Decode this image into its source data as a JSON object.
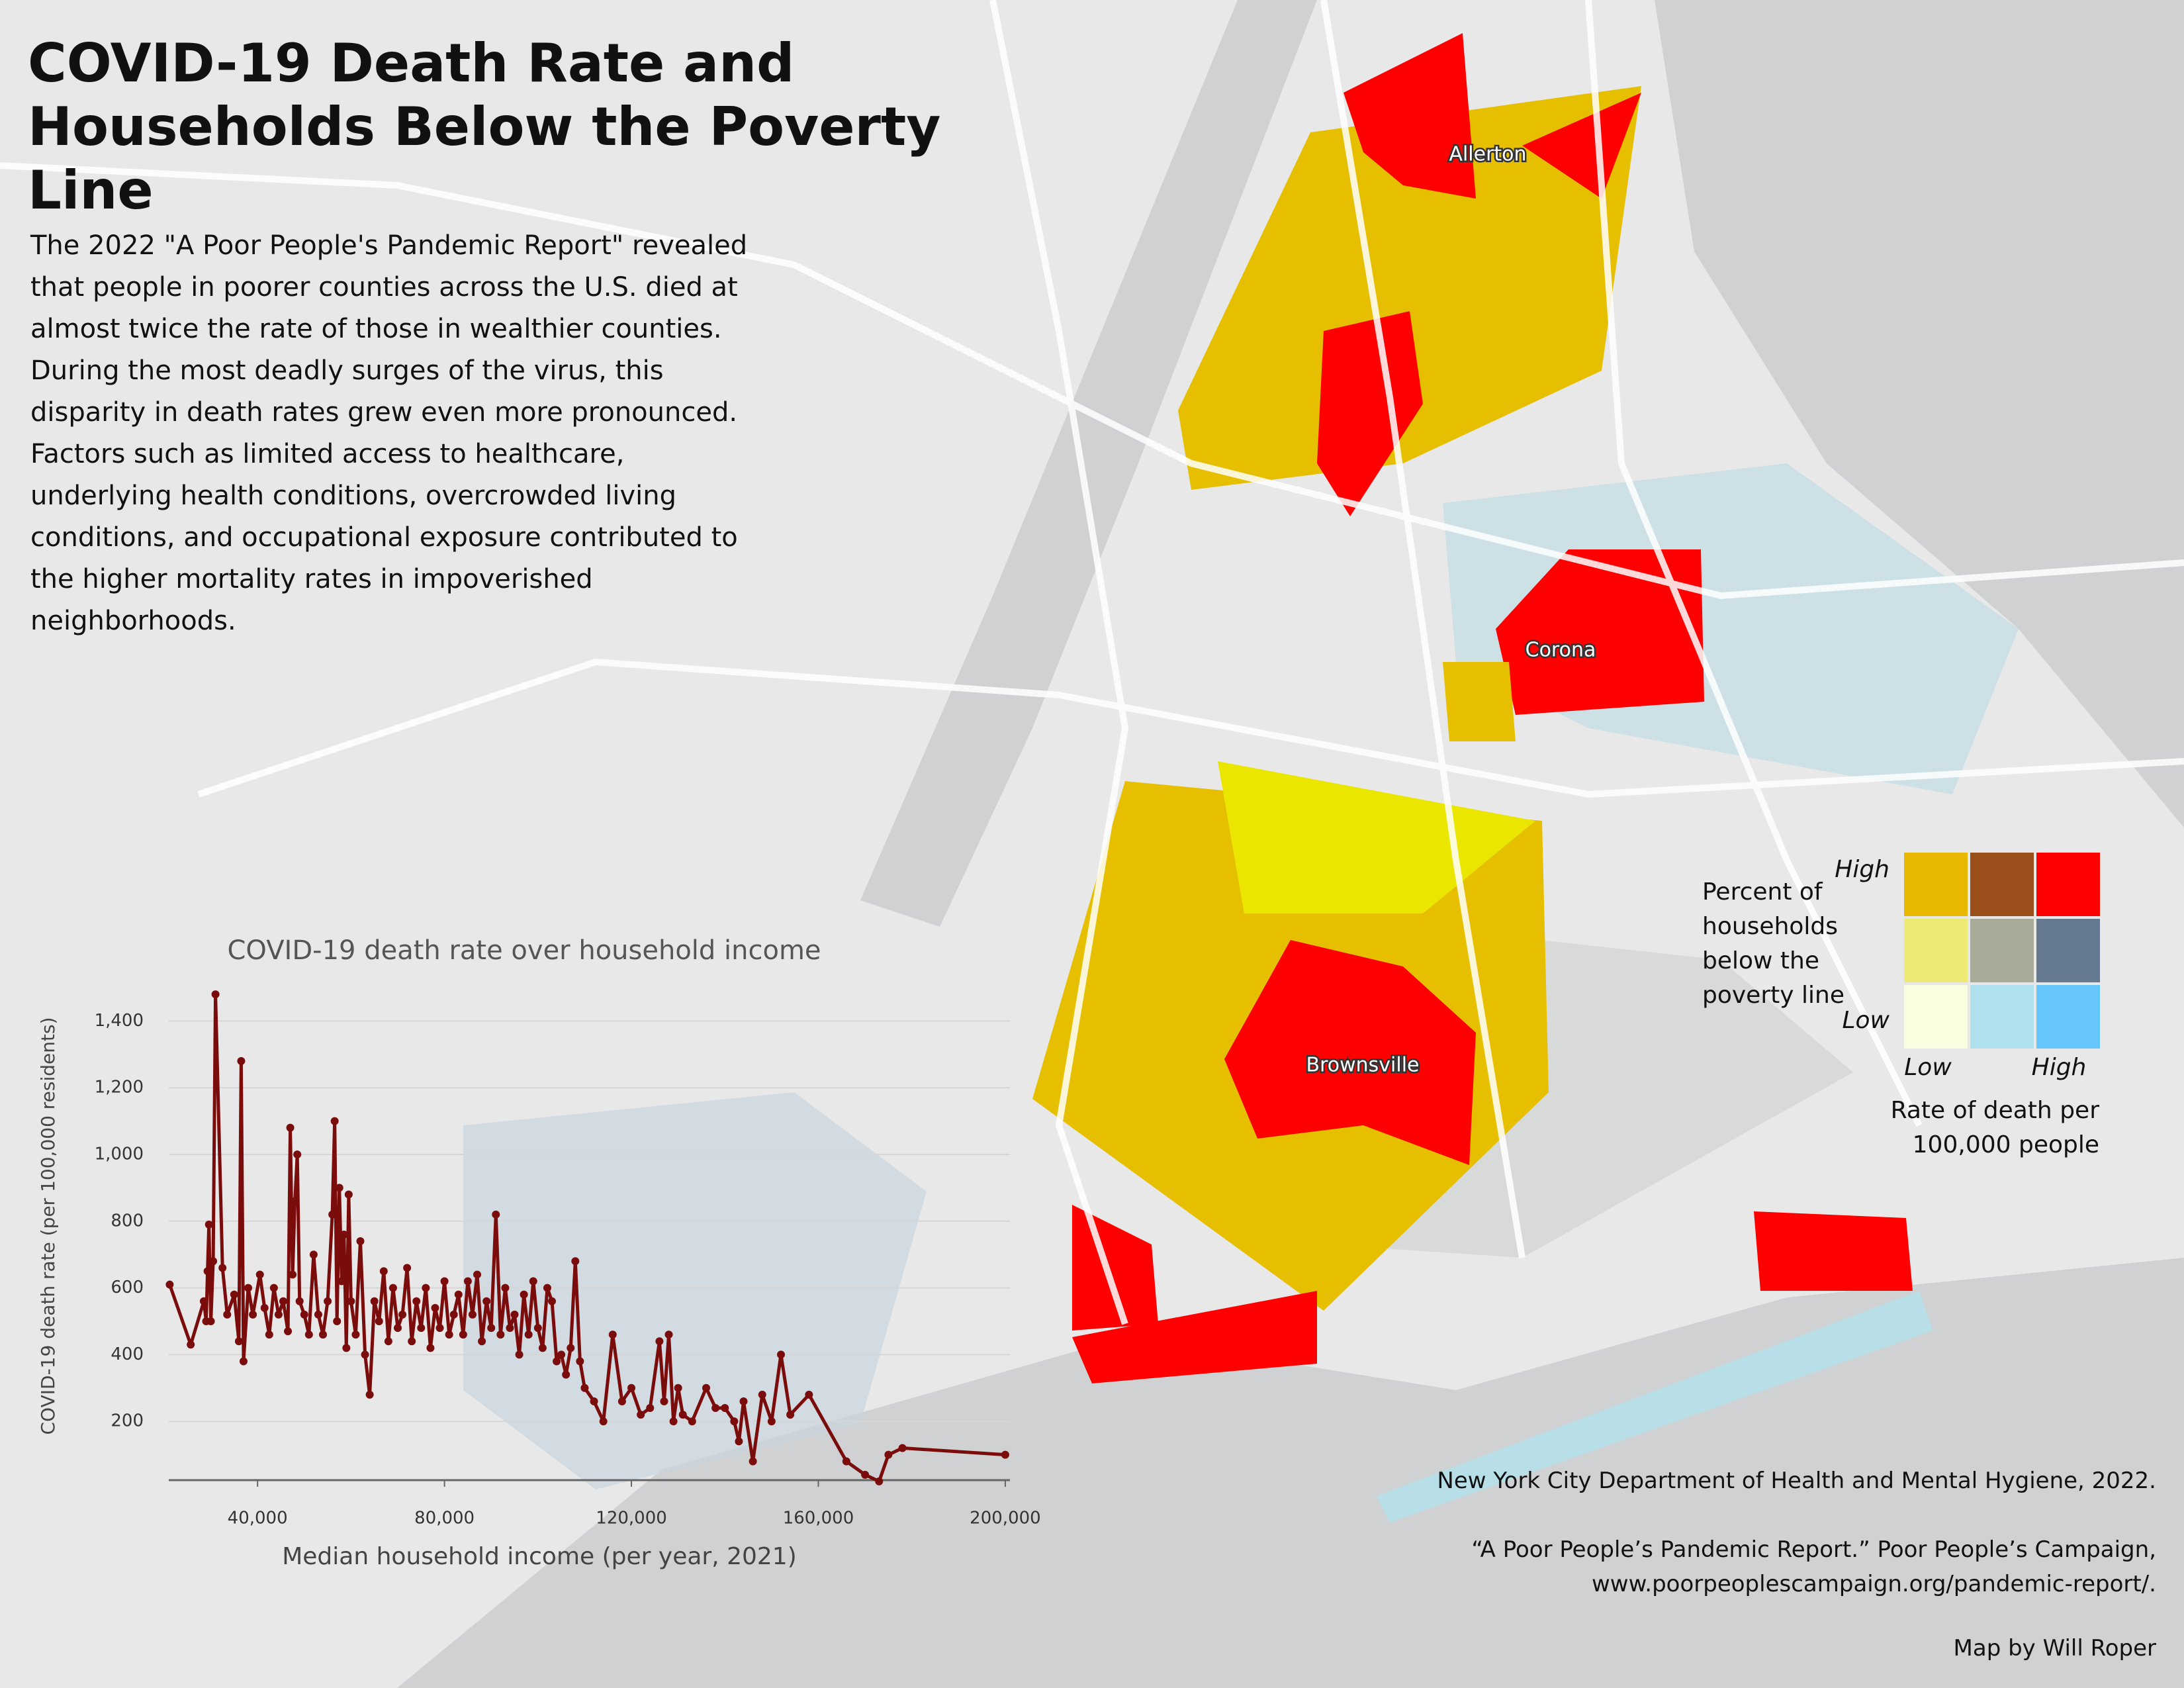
{
  "title": "COVID-19 Death Rate and Households Below the Poverty Line",
  "description": "The 2022 \"A Poor People's Pandemic Report\" revealed that people in poorer counties across the U.S. died at almost twice the rate of those in wealthier counties. During the most deadly surges of the virus, this disparity in death rates grew even more pronounced. Factors such as limited access to healthcare, underlying health conditions, overcrowded living conditions, and occupational exposure contributed to the higher mortality rates in impoverished neighborhoods.",
  "map_labels": [
    "Allerton",
    "Corona",
    "Brownsville"
  ],
  "legend": {
    "y_title": "Percent of households below the poverty line",
    "y_high": "High",
    "y_low": "Low",
    "x_low": "Low",
    "x_high": "High",
    "x_title": "Rate of death per 100,000 people",
    "colors": [
      [
        "#e8b800",
        "#9b4f1a",
        "#ff0000"
      ],
      [
        "#eeea76",
        "#a9ab99",
        "#657a90"
      ],
      [
        "#fbfde0",
        "#aee0ee",
        "#66c6fb"
      ]
    ]
  },
  "chart_data": {
    "type": "line",
    "title": "COVID-19 death rate over household income",
    "x_label": "Median household income (per year, 2021)",
    "y_label": "COVID-19 death rate (per 100,000 residents)",
    "color": "#7a0c0c",
    "x": [
      21200,
      25700,
      28500,
      29000,
      29300,
      29600,
      30000,
      30500,
      31000,
      32500,
      33500,
      35000,
      36000,
      36500,
      37000,
      38000,
      39000,
      40500,
      41500,
      42500,
      43500,
      44500,
      45500,
      46500,
      47000,
      47500,
      48000,
      48500,
      49000,
      50000,
      51000,
      52000,
      53000,
      54000,
      55000,
      56000,
      56500,
      57000,
      57500,
      58000,
      58500,
      59000,
      59500,
      60000,
      61000,
      62000,
      63000,
      64000,
      65000,
      66000,
      67000,
      68000,
      69000,
      70000,
      71000,
      72000,
      73000,
      74000,
      75000,
      76000,
      77000,
      78000,
      79000,
      80000,
      81000,
      82000,
      83000,
      84000,
      85000,
      86000,
      87000,
      88000,
      89000,
      90000,
      91000,
      92000,
      93000,
      94000,
      95000,
      96000,
      97000,
      98000,
      99000,
      100000,
      101000,
      102000,
      103000,
      104000,
      105000,
      106000,
      107000,
      108000,
      109000,
      110000,
      112000,
      114000,
      116000,
      118000,
      120000,
      122000,
      124000,
      126000,
      127000,
      128000,
      129000,
      130000,
      131000,
      133000,
      136000,
      138000,
      140000,
      142000,
      143000,
      144000,
      146000,
      148000,
      150000,
      152000,
      154000,
      158000,
      166000,
      170000,
      173000,
      175000,
      178000,
      200000
    ],
    "values": [
      610,
      430,
      560,
      500,
      650,
      790,
      500,
      680,
      1480,
      660,
      520,
      580,
      440,
      1280,
      380,
      600,
      520,
      640,
      540,
      460,
      600,
      520,
      560,
      470,
      1080,
      640,
      860,
      1000,
      560,
      520,
      460,
      700,
      520,
      460,
      560,
      820,
      1100,
      500,
      900,
      620,
      760,
      420,
      880,
      560,
      460,
      740,
      400,
      280,
      560,
      500,
      650,
      440,
      600,
      480,
      520,
      660,
      440,
      560,
      480,
      600,
      420,
      540,
      480,
      620,
      460,
      520,
      580,
      460,
      620,
      520,
      640,
      440,
      560,
      480,
      820,
      460,
      600,
      480,
      520,
      400,
      580,
      460,
      620,
      480,
      420,
      600,
      560,
      380,
      400,
      340,
      420,
      680,
      380,
      300,
      260,
      200,
      460,
      260,
      300,
      220,
      240,
      440,
      260,
      460,
      200,
      300,
      220,
      200,
      300,
      240,
      240,
      200,
      140,
      260,
      80,
      280,
      200,
      400,
      220,
      280,
      80,
      40,
      20,
      100,
      120,
      100
    ],
    "xlim": [
      21000,
      201000
    ],
    "xticks": [
      {
        "value": 40000,
        "label": "40,000"
      },
      {
        "value": 80000,
        "label": "80,000"
      },
      {
        "value": 120000,
        "label": "120,000"
      },
      {
        "value": 160000,
        "label": "160,000"
      },
      {
        "value": 200000,
        "label": "200,000"
      }
    ],
    "ylim": [
      0,
      1500
    ],
    "yticks": [
      200,
      400,
      600,
      800,
      {
        "value": 1000,
        "label": "1,000"
      },
      {
        "value": 1200,
        "label": "1,200"
      },
      {
        "value": 1400,
        "label": "1,400"
      }
    ],
    "grid": true
  },
  "sources": [
    "New York City Department of Health and Mental Hygiene, 2022.",
    "“A Poor People’s Pandemic Report.” Poor People’s Campaign, www.poorpeoplescampaign.org/pandemic-report/."
  ],
  "credit": "Map by Will Roper"
}
